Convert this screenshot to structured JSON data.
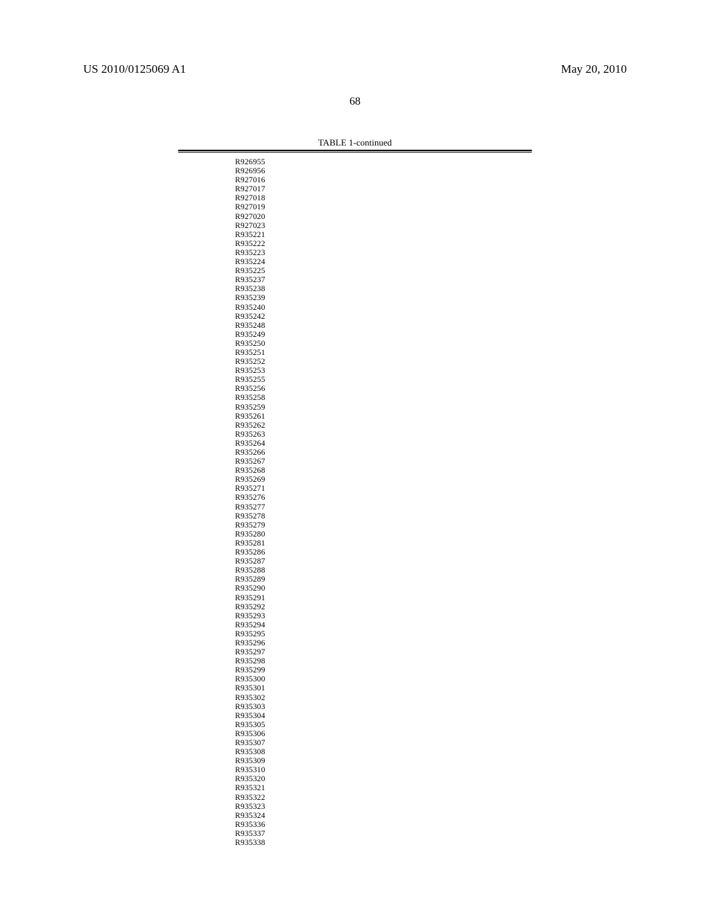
{
  "header": {
    "publication_number": "US 2010/0125069 A1",
    "publication_date": "May 20, 2010"
  },
  "page_number": "68",
  "table": {
    "title": "TABLE 1-continued",
    "codes": [
      "R926955",
      "R926956",
      "R927016",
      "R927017",
      "R927018",
      "R927019",
      "R927020",
      "R927023",
      "R935221",
      "R935222",
      "R935223",
      "R935224",
      "R935225",
      "R935237",
      "R935238",
      "R935239",
      "R935240",
      "R935242",
      "R935248",
      "R935249",
      "R935250",
      "R935251",
      "R935252",
      "R935253",
      "R935255",
      "R935256",
      "R935258",
      "R935259",
      "R935261",
      "R935262",
      "R935263",
      "R935264",
      "R935266",
      "R935267",
      "R935268",
      "R935269",
      "R935271",
      "R935276",
      "R935277",
      "R935278",
      "R935279",
      "R935280",
      "R935281",
      "R935286",
      "R935287",
      "R935288",
      "R935289",
      "R935290",
      "R935291",
      "R935292",
      "R935293",
      "R935294",
      "R935295",
      "R935296",
      "R935297",
      "R935298",
      "R935299",
      "R935300",
      "R935301",
      "R935302",
      "R935303",
      "R935304",
      "R935305",
      "R935306",
      "R935307",
      "R935308",
      "R935309",
      "R935310",
      "R935320",
      "R935321",
      "R935322",
      "R935323",
      "R935324",
      "R935336",
      "R935337",
      "R935338"
    ]
  }
}
